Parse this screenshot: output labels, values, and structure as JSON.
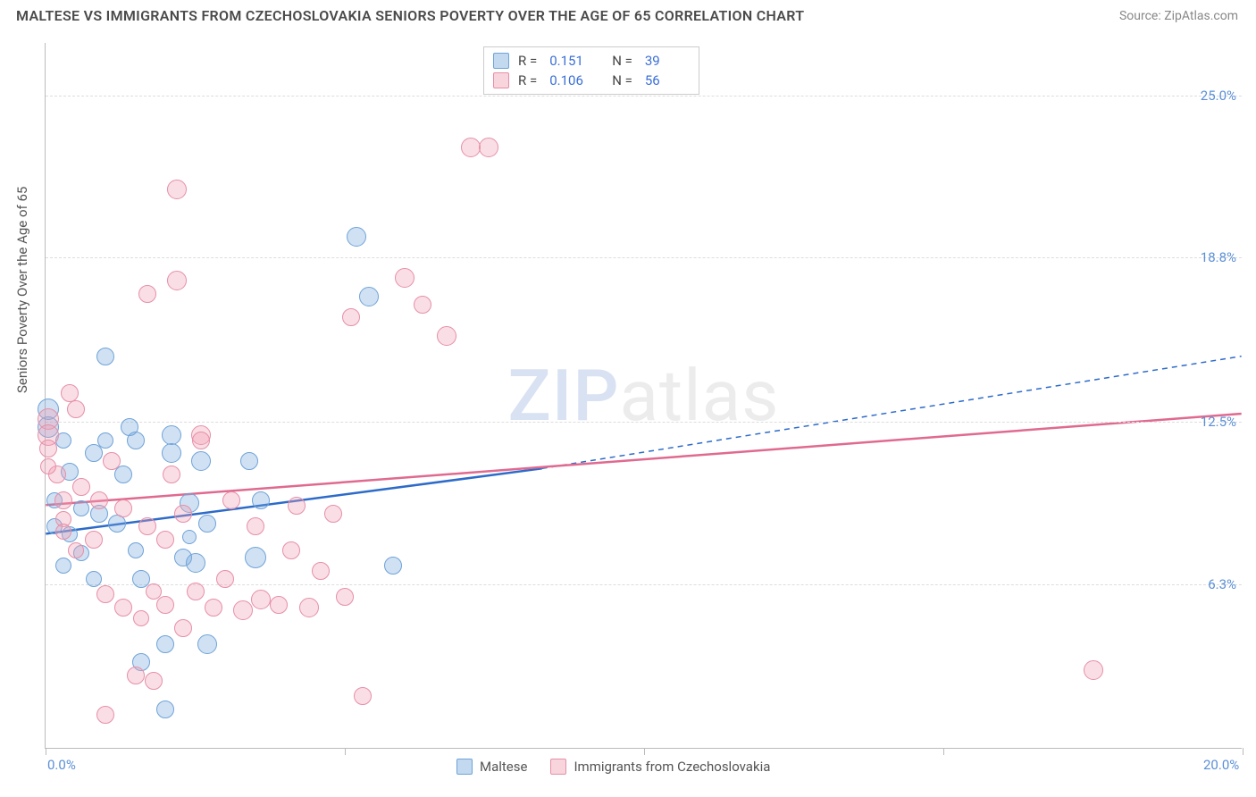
{
  "header": {
    "title": "MALTESE VS IMMIGRANTS FROM CZECHOSLOVAKIA SENIORS POVERTY OVER THE AGE OF 65 CORRELATION CHART",
    "source": "Source: ZipAtlas.com"
  },
  "chart": {
    "type": "scatter",
    "yaxis_title": "Seniors Poverty Over the Age of 65",
    "xlim": [
      0,
      20
    ],
    "ylim": [
      0,
      27
    ],
    "yticks": [
      {
        "v": 6.3,
        "label": "6.3%"
      },
      {
        "v": 12.5,
        "label": "12.5%"
      },
      {
        "v": 18.8,
        "label": "18.8%"
      },
      {
        "v": 25.0,
        "label": "25.0%"
      }
    ],
    "xticks": [
      {
        "v": 0,
        "label": "0.0%"
      },
      {
        "v": 5,
        "label": ""
      },
      {
        "v": 10,
        "label": ""
      },
      {
        "v": 15,
        "label": ""
      },
      {
        "v": 20,
        "label": "20.0%"
      }
    ],
    "series": [
      {
        "key": "maltese",
        "name": "Maltese",
        "color_fill": "rgba(120,170,220,0.35)",
        "color_stroke": "#6fa3d8",
        "r_value": "0.151",
        "n_value": "39",
        "trend": {
          "x1": 0,
          "y1": 8.2,
          "x2": 8.3,
          "y2": 10.7,
          "x2_dash": 20,
          "y2_dash": 15.0,
          "color": "#2d6bc9"
        },
        "marker_r": 10,
        "points": [
          [
            0.05,
            13.0,
            12
          ],
          [
            0.05,
            12.3,
            12
          ],
          [
            0.8,
            11.3,
            10
          ],
          [
            1.0,
            15.0,
            10
          ],
          [
            1.4,
            12.3,
            10
          ],
          [
            1.2,
            8.6,
            10
          ],
          [
            0.4,
            8.2,
            9
          ],
          [
            0.6,
            9.2,
            9
          ],
          [
            0.9,
            9.0,
            10
          ],
          [
            1.3,
            10.5,
            10
          ],
          [
            2.1,
            12.0,
            11
          ],
          [
            2.1,
            11.3,
            11
          ],
          [
            2.4,
            9.4,
            11
          ],
          [
            2.4,
            8.1,
            8
          ],
          [
            2.7,
            8.6,
            10
          ],
          [
            2.3,
            7.3,
            10
          ],
          [
            1.5,
            7.6,
            9
          ],
          [
            0.6,
            7.5,
            9
          ],
          [
            0.3,
            7.0,
            9
          ],
          [
            0.8,
            6.5,
            9
          ],
          [
            1.6,
            6.5,
            10
          ],
          [
            2.0,
            4.0,
            10
          ],
          [
            2.7,
            4.0,
            11
          ],
          [
            1.6,
            3.3,
            10
          ],
          [
            2.5,
            7.1,
            11
          ],
          [
            3.5,
            7.3,
            12
          ],
          [
            3.6,
            9.5,
            10
          ],
          [
            3.4,
            11.0,
            10
          ],
          [
            5.4,
            17.3,
            11
          ],
          [
            5.2,
            19.6,
            11
          ],
          [
            5.8,
            7.0,
            10
          ],
          [
            2.6,
            11.0,
            11
          ],
          [
            1.5,
            11.8,
            10
          ],
          [
            0.4,
            10.6,
            10
          ],
          [
            0.15,
            9.5,
            9
          ],
          [
            0.15,
            8.5,
            9
          ],
          [
            0.3,
            11.8,
            9
          ],
          [
            1.0,
            11.8,
            9
          ],
          [
            2.0,
            1.5,
            10
          ]
        ]
      },
      {
        "key": "czech",
        "name": "Immigrants from Czechoslovakia",
        "color_fill": "rgba(240,160,180,0.35)",
        "color_stroke": "#e68fa8",
        "r_value": "0.106",
        "n_value": "56",
        "trend": {
          "x1": 0,
          "y1": 9.3,
          "x2": 20,
          "y2": 12.8,
          "x2_dash": 20,
          "y2_dash": 12.8,
          "color": "#e06a8f"
        },
        "marker_r": 10,
        "points": [
          [
            0.05,
            12.6,
            12
          ],
          [
            0.05,
            12.0,
            12
          ],
          [
            0.2,
            10.5,
            10
          ],
          [
            0.3,
            9.5,
            10
          ],
          [
            0.3,
            8.8,
            9
          ],
          [
            0.3,
            8.3,
            9
          ],
          [
            0.4,
            13.6,
            10
          ],
          [
            0.5,
            13.0,
            10
          ],
          [
            0.5,
            7.6,
            9
          ],
          [
            0.6,
            10.0,
            10
          ],
          [
            0.8,
            8.0,
            10
          ],
          [
            0.9,
            9.5,
            10
          ],
          [
            1.0,
            5.9,
            10
          ],
          [
            1.1,
            11.0,
            10
          ],
          [
            1.3,
            9.2,
            10
          ],
          [
            1.3,
            5.4,
            10
          ],
          [
            1.5,
            2.8,
            10
          ],
          [
            1.7,
            8.5,
            10
          ],
          [
            1.7,
            17.4,
            10
          ],
          [
            1.8,
            2.6,
            10
          ],
          [
            1.8,
            6.0,
            9
          ],
          [
            2.0,
            5.5,
            10
          ],
          [
            2.0,
            8.0,
            10
          ],
          [
            2.1,
            10.5,
            10
          ],
          [
            2.2,
            21.4,
            11
          ],
          [
            2.2,
            17.9,
            11
          ],
          [
            2.3,
            9.0,
            10
          ],
          [
            2.3,
            4.6,
            10
          ],
          [
            2.5,
            6.0,
            10
          ],
          [
            2.6,
            12.0,
            11
          ],
          [
            2.8,
            5.4,
            10
          ],
          [
            3.0,
            6.5,
            10
          ],
          [
            3.1,
            9.5,
            10
          ],
          [
            3.3,
            5.3,
            11
          ],
          [
            3.5,
            8.5,
            10
          ],
          [
            3.6,
            5.7,
            11
          ],
          [
            3.9,
            5.5,
            10
          ],
          [
            4.1,
            7.6,
            10
          ],
          [
            4.2,
            9.3,
            10
          ],
          [
            4.4,
            5.4,
            11
          ],
          [
            4.6,
            6.8,
            10
          ],
          [
            5.0,
            5.8,
            10
          ],
          [
            5.1,
            16.5,
            10
          ],
          [
            5.3,
            2.0,
            10
          ],
          [
            6.0,
            18.0,
            11
          ],
          [
            6.3,
            17.0,
            10
          ],
          [
            6.7,
            15.8,
            11
          ],
          [
            7.1,
            23.0,
            11
          ],
          [
            7.4,
            23.0,
            11
          ],
          [
            4.8,
            9.0,
            10
          ],
          [
            0.05,
            11.5,
            10
          ],
          [
            0.05,
            10.8,
            9
          ],
          [
            1.0,
            1.3,
            10
          ],
          [
            1.6,
            5.0,
            9
          ],
          [
            17.5,
            3.0,
            11
          ],
          [
            2.6,
            11.8,
            10
          ]
        ]
      }
    ],
    "legend_bottom": [
      {
        "swatch": "blue",
        "label_key": "series.0.name"
      },
      {
        "swatch": "pink",
        "label_key": "series.1.name"
      }
    ],
    "watermark": {
      "part1": "ZIP",
      "part2": "atlas"
    },
    "background_color": "#ffffff",
    "grid_color": "#dddddd",
    "axis_color": "#bbbbbb",
    "label_color": "#5b8fd6"
  }
}
